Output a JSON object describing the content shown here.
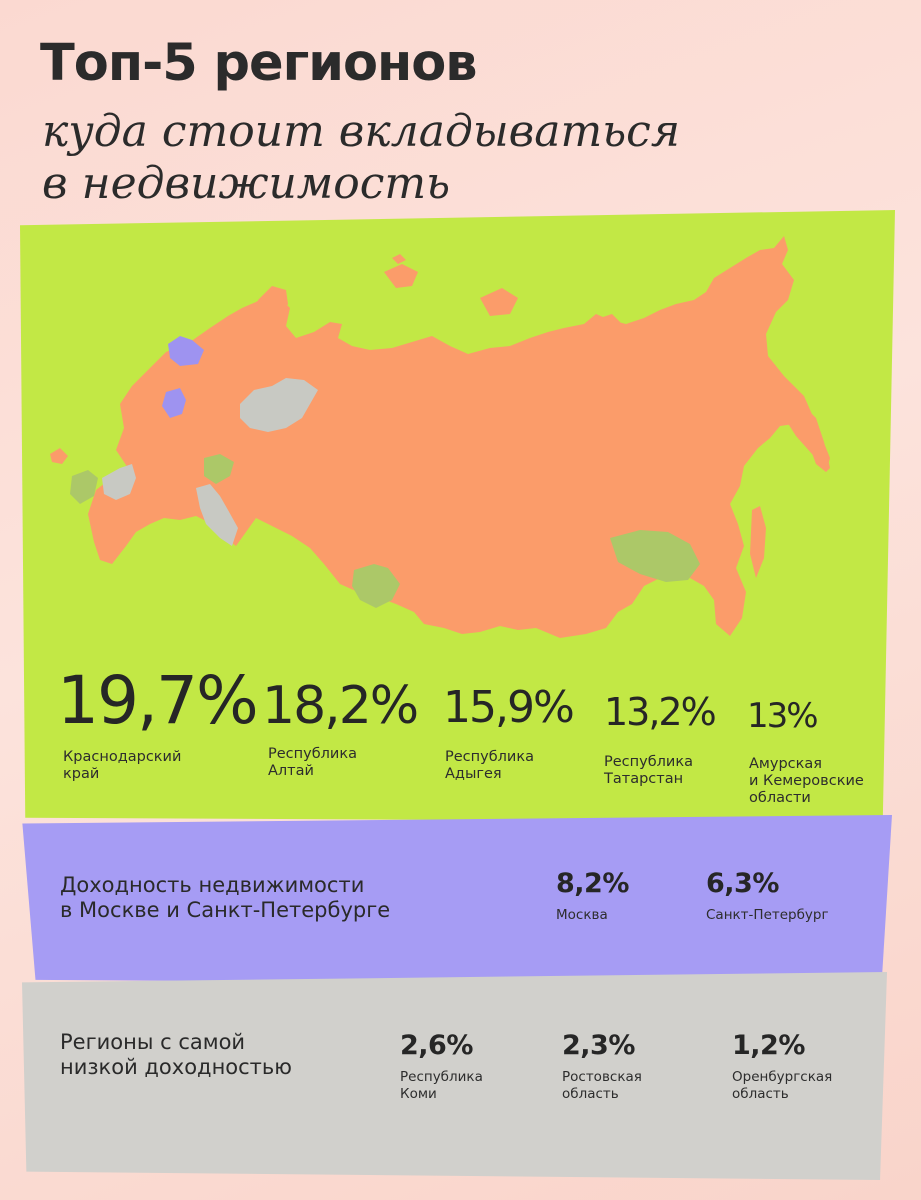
{
  "header": {
    "title": "Топ-5 регионов",
    "subtitle_line1": "куда стоит вкладываться",
    "subtitle_line2": "в недвижимость"
  },
  "colors": {
    "background": "#fbd9d1",
    "green_panel": "#c2e845",
    "map_fill": "#fb9c6a",
    "top_region_fill": "#acc868",
    "low_region_fill": "#c8c9c3",
    "capital_fill": "#9e93f0",
    "purple_panel": "#a69cf4",
    "grey_panel": "#d1d0cc"
  },
  "top5": [
    {
      "value": "19,7%",
      "label": "Краснодарский\nкрай"
    },
    {
      "value": "18,2%",
      "label": "Республика\nАлтай"
    },
    {
      "value": "15,9%",
      "label": "Республика\nАдыгея"
    },
    {
      "value": "13,2%",
      "label": "Республика\nТатарстан"
    },
    {
      "value": "13%",
      "label": "Амурская\nи Кемеровские\nобласти"
    }
  ],
  "capitals": {
    "heading": "Доходность недвижимости\nв Москве и Санкт-Петербурге",
    "items": [
      {
        "value": "8,2%",
        "label": "Москва"
      },
      {
        "value": "6,3%",
        "label": "Санкт-Петербург"
      }
    ]
  },
  "lowest": {
    "heading": "Регионы с самой\nнизкой доходностью",
    "items": [
      {
        "value": "2,6%",
        "label": "Республика\nКоми"
      },
      {
        "value": "2,3%",
        "label": "Ростовская\nобласть"
      },
      {
        "value": "1,2%",
        "label": "Оренбургская\nобласть"
      }
    ]
  }
}
